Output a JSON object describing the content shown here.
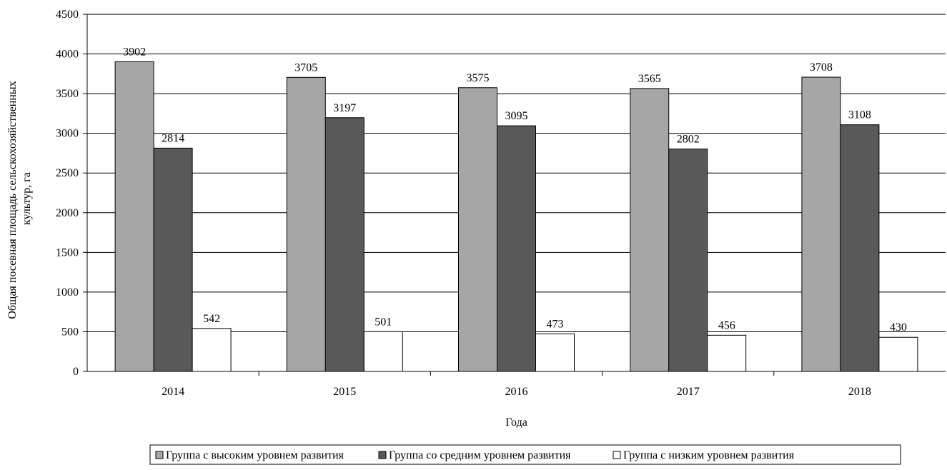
{
  "chart_data": {
    "type": "bar",
    "title": "",
    "xlabel": "Года",
    "ylabel_lines": [
      "Общая посевная площадь сельскохозяйственных",
      "культур, га"
    ],
    "ylim": [
      0,
      4500
    ],
    "yticks": [
      0,
      500,
      1000,
      1500,
      2000,
      2500,
      3000,
      3500,
      4000,
      4500
    ],
    "grid": true,
    "legend_position": "bottom",
    "categories": [
      "2014",
      "2015",
      "2016",
      "2017",
      "2018"
    ],
    "series": [
      {
        "name": "Группа с высоким уровнем развития",
        "color": "#a6a6a6",
        "values": [
          3902,
          3705,
          3575,
          3565,
          3708
        ]
      },
      {
        "name": "Группа со средним уровнем развития",
        "color": "#595959",
        "values": [
          2814,
          3197,
          3095,
          2802,
          3108
        ]
      },
      {
        "name": "Группа с низким уровнем развития",
        "color": "#ffffff",
        "values": [
          542,
          501,
          473,
          456,
          430
        ]
      }
    ]
  }
}
